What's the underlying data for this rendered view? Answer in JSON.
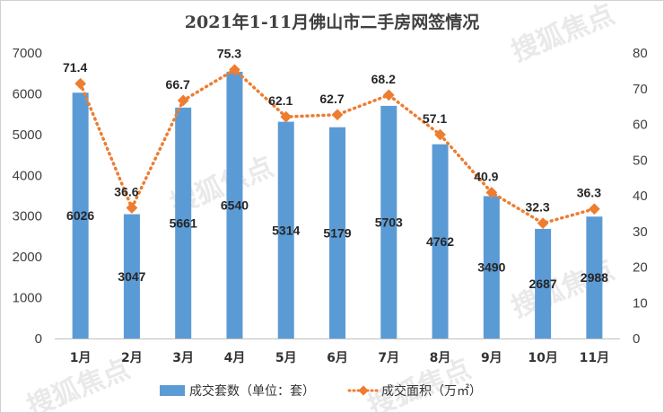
{
  "chart_data": {
    "type": "bar+line",
    "title": "2021年1-11月佛山市二手房网签情况",
    "categories": [
      "1月",
      "2月",
      "3月",
      "4月",
      "5月",
      "6月",
      "7月",
      "8月",
      "9月",
      "10月",
      "11月"
    ],
    "series": [
      {
        "name": "成交套数（单位：套）",
        "type": "bar",
        "axis": "left",
        "values": [
          6026,
          3047,
          5661,
          6540,
          5314,
          5179,
          5703,
          4762,
          3490,
          2687,
          2988
        ]
      },
      {
        "name": "成交面积（万㎡）",
        "type": "line",
        "axis": "right",
        "values": [
          71.4,
          36.6,
          66.7,
          75.3,
          62.1,
          62.7,
          68.2,
          57.1,
          40.9,
          32.3,
          36.3
        ]
      }
    ],
    "y_left": {
      "min": 0,
      "max": 7000,
      "step": 1000
    },
    "y_right": {
      "min": 0,
      "max": 80,
      "step": 10
    },
    "grid": false,
    "legend_position": "bottom",
    "colors": {
      "bar": "#5b9bd5",
      "line": "#ed7d31"
    }
  },
  "watermark": "搜狐焦点"
}
